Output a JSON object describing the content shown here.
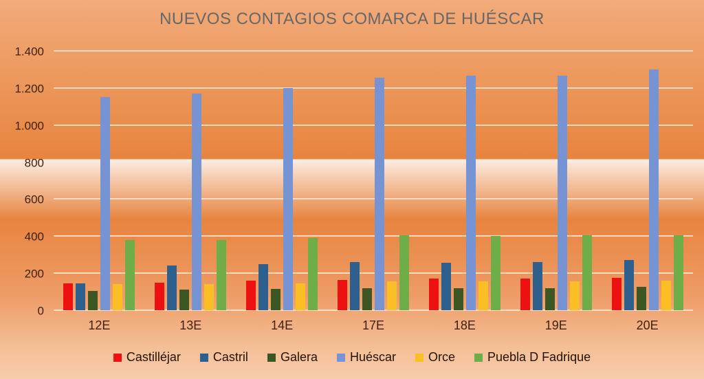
{
  "chart_data": {
    "type": "bar",
    "title": "NUEVOS CONTAGIOS COMARCA DE HUÉSCAR",
    "categories": [
      "12E",
      "13E",
      "14E",
      "17E",
      "18E",
      "19E",
      "20E"
    ],
    "series": [
      {
        "name": "Castilléjar",
        "color": "#EE1111",
        "values": [
          145,
          150,
          160,
          165,
          170,
          170,
          175
        ]
      },
      {
        "name": "Castril",
        "color": "#2E608F",
        "values": [
          145,
          240,
          250,
          260,
          255,
          260,
          270
        ]
      },
      {
        "name": "Galera",
        "color": "#3D5724",
        "values": [
          105,
          110,
          115,
          120,
          120,
          120,
          125
        ]
      },
      {
        "name": "Huéscar",
        "color": "#7694D4",
        "values": [
          1150,
          1170,
          1200,
          1255,
          1265,
          1265,
          1300
        ]
      },
      {
        "name": "Orce",
        "color": "#FABF25",
        "values": [
          140,
          140,
          145,
          155,
          155,
          155,
          160
        ]
      },
      {
        "name": "Puebla D Fadrique",
        "color": "#6FAD49",
        "values": [
          380,
          380,
          390,
          405,
          400,
          405,
          405
        ]
      }
    ],
    "ylim": [
      0,
      1400
    ],
    "yticks": [
      {
        "value": 1400,
        "label": "1.400"
      },
      {
        "value": 1200,
        "label": "1.200"
      },
      {
        "value": 1000,
        "label": "1.000"
      },
      {
        "value": 800,
        "label": "800"
      },
      {
        "value": 600,
        "label": "600"
      },
      {
        "value": 400,
        "label": "400"
      },
      {
        "value": 200,
        "label": "200"
      },
      {
        "value": 0,
        "label": "0"
      }
    ],
    "grid": true,
    "legend_position": "bottom"
  },
  "colors": {
    "background_top": "#F2AB7B",
    "background_mid": "#E7843F",
    "background_bottom": "#F7CDAB",
    "gridline": "#F7E7D3",
    "title_text": "#676767",
    "axis_text": "#40220F",
    "legend_text": "#241307"
  }
}
